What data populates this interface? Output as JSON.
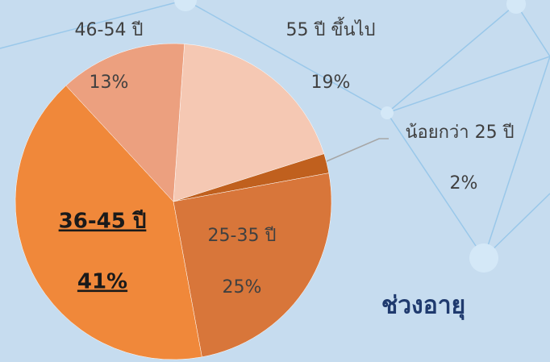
{
  "chart_data": {
    "type": "pie",
    "title": "ช่วงอายุ",
    "categories": [
      "55 ปี ขึ้นไป",
      "น้อยกว่า 25 ปี",
      "25-35 ปี",
      "36-45 ปี",
      "46-54 ปี"
    ],
    "values": [
      19,
      2,
      25,
      41,
      13
    ],
    "value_labels": [
      "19%",
      "2%",
      "25%",
      "41%",
      "13%"
    ],
    "colors": [
      "#f5c8b3",
      "#c0601e",
      "#d8763a",
      "#f0883a",
      "#eca07f"
    ]
  }
}
